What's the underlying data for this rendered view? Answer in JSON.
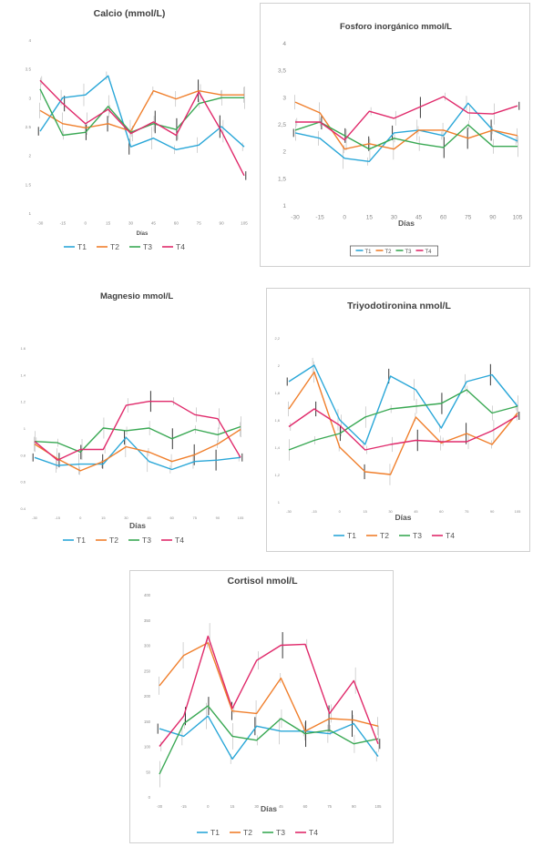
{
  "chart_data": [
    {
      "type": "line",
      "title": "Calcio (mmol/L)",
      "xlabel": "Días",
      "ylabel": "",
      "categories": [
        "-30",
        "-15",
        "0",
        "15",
        "30",
        "45",
        "60",
        "75",
        "90",
        "105"
      ],
      "yticks": [
        "1",
        "1.5",
        "2",
        "2.5",
        "3",
        "3.5",
        "4"
      ],
      "ylim": [
        1,
        4
      ],
      "grid": false,
      "legend": "bottom",
      "series": [
        {
          "name": "T1",
          "color": "#2aa7d8",
          "values": [
            2.42,
            3.0,
            3.05,
            3.38,
            2.15,
            2.3,
            2.1,
            2.18,
            2.5,
            2.15
          ]
        },
        {
          "name": "T2",
          "color": "#f07f2c",
          "values": [
            2.78,
            2.55,
            2.48,
            2.55,
            2.42,
            3.12,
            2.98,
            3.12,
            3.05,
            3.05
          ]
        },
        {
          "name": "T3",
          "color": "#39a853",
          "values": [
            3.15,
            2.35,
            2.4,
            2.85,
            2.4,
            2.55,
            2.45,
            2.9,
            3.0,
            3.0
          ]
        },
        {
          "name": "T4",
          "color": "#e02a6b",
          "values": [
            3.3,
            2.9,
            2.55,
            2.8,
            2.38,
            2.58,
            2.35,
            3.1,
            2.42,
            1.65
          ]
        }
      ]
    },
    {
      "type": "line",
      "title": "Fosforo inorgánico mmol/L",
      "xlabel": "Días",
      "ylabel": "",
      "categories": [
        "-30",
        "-15",
        "0",
        "15",
        "30",
        "45",
        "60",
        "75",
        "90",
        "105"
      ],
      "yticks": [
        "1",
        "1,5",
        "2",
        "2,5",
        "3",
        "3,5",
        "4"
      ],
      "ylim": [
        1,
        4
      ],
      "grid": false,
      "legend": "bottom",
      "series": [
        {
          "name": "T1",
          "color": "#2aa7d8",
          "values": [
            2.35,
            2.25,
            1.88,
            1.82,
            2.35,
            2.4,
            2.3,
            2.9,
            2.4,
            2.2
          ]
        },
        {
          "name": "T2",
          "color": "#f07f2c",
          "values": [
            2.92,
            2.72,
            2.05,
            2.15,
            2.05,
            2.4,
            2.4,
            2.25,
            2.4,
            2.3
          ]
        },
        {
          "name": "T3",
          "color": "#39a853",
          "values": [
            2.4,
            2.55,
            2.3,
            2.05,
            2.25,
            2.15,
            2.08,
            2.5,
            2.1,
            2.1
          ]
        },
        {
          "name": "T4",
          "color": "#e02a6b",
          "values": [
            2.55,
            2.55,
            2.22,
            2.75,
            2.62,
            2.82,
            3.02,
            2.72,
            2.7,
            2.85
          ]
        }
      ]
    },
    {
      "type": "line",
      "title": "Magnesio mmol/L",
      "xlabel": "Días",
      "ylabel": "",
      "categories": [
        "-30",
        "-15",
        "0",
        "15",
        "30",
        "45",
        "60",
        "75",
        "90",
        "105"
      ],
      "yticks": [
        "0.4",
        "0.6",
        "0.8",
        "1",
        "1.2",
        "1.4",
        "1.6"
      ],
      "ylim": [
        0.4,
        1.6
      ],
      "grid": false,
      "legend": "bottom",
      "series": [
        {
          "name": "T1",
          "color": "#2aa7d8",
          "values": [
            0.78,
            0.72,
            0.73,
            0.73,
            0.93,
            0.75,
            0.69,
            0.75,
            0.76,
            0.78
          ]
        },
        {
          "name": "T2",
          "color": "#f07f2c",
          "values": [
            0.88,
            0.77,
            0.68,
            0.75,
            0.86,
            0.82,
            0.75,
            0.8,
            0.88,
            0.99
          ]
        },
        {
          "name": "T3",
          "color": "#39a853",
          "values": [
            0.9,
            0.89,
            0.82,
            1.0,
            0.98,
            1.0,
            0.92,
            0.99,
            0.95,
            1.01
          ]
        },
        {
          "name": "T4",
          "color": "#e02a6b",
          "values": [
            0.9,
            0.76,
            0.84,
            0.84,
            1.17,
            1.2,
            1.2,
            1.1,
            1.07,
            0.78
          ]
        }
      ]
    },
    {
      "type": "line",
      "title": "Triyodotironina nmol/L",
      "xlabel": "Días",
      "ylabel": "",
      "categories": [
        "-30",
        "-15",
        "0",
        "15",
        "30",
        "45",
        "60",
        "75",
        "90",
        "105"
      ],
      "yticks": [
        "1",
        "1,2",
        "1,4",
        "1,6",
        "1,8",
        "2",
        "2,2"
      ],
      "ylim": [
        1,
        2.2
      ],
      "grid": false,
      "legend": "bottom",
      "series": [
        {
          "name": "T1",
          "color": "#2aa7d8",
          "values": [
            1.88,
            2.0,
            1.6,
            1.42,
            1.92,
            1.82,
            1.54,
            1.88,
            1.93,
            1.7
          ]
        },
        {
          "name": "T2",
          "color": "#f07f2c",
          "values": [
            1.68,
            1.95,
            1.4,
            1.22,
            1.2,
            1.62,
            1.43,
            1.5,
            1.42,
            1.65
          ]
        },
        {
          "name": "T3",
          "color": "#39a853",
          "values": [
            1.38,
            1.45,
            1.5,
            1.62,
            1.68,
            1.7,
            1.72,
            1.82,
            1.65,
            1.7
          ]
        },
        {
          "name": "T4",
          "color": "#e02a6b",
          "values": [
            1.55,
            1.68,
            1.56,
            1.38,
            1.42,
            1.45,
            1.44,
            1.44,
            1.52,
            1.63
          ]
        }
      ]
    },
    {
      "type": "line",
      "title": "Cortisol nmol/L",
      "xlabel": "Días",
      "ylabel": "",
      "categories": [
        "-30",
        "-15",
        "0",
        "15",
        "30",
        "45",
        "60",
        "75",
        "90",
        "105"
      ],
      "yticks": [
        "0",
        "50",
        "100",
        "150",
        "200",
        "250",
        "300",
        "350",
        "400"
      ],
      "ylim": [
        0,
        400
      ],
      "grid": false,
      "legend": "bottom",
      "series": [
        {
          "name": "T1",
          "color": "#2aa7d8",
          "values": [
            135,
            120,
            160,
            75,
            140,
            130,
            130,
            125,
            145,
            80
          ]
        },
        {
          "name": "T2",
          "color": "#f07f2c",
          "values": [
            220,
            280,
            305,
            170,
            165,
            235,
            130,
            155,
            152,
            140
          ]
        },
        {
          "name": "T3",
          "color": "#39a853",
          "values": [
            45,
            145,
            180,
            120,
            112,
            155,
            125,
            132,
            105,
            115
          ]
        },
        {
          "name": "T4",
          "color": "#e02a6b",
          "values": [
            100,
            160,
            318,
            175,
            270,
            300,
            302,
            165,
            230,
            105
          ]
        }
      ]
    }
  ]
}
